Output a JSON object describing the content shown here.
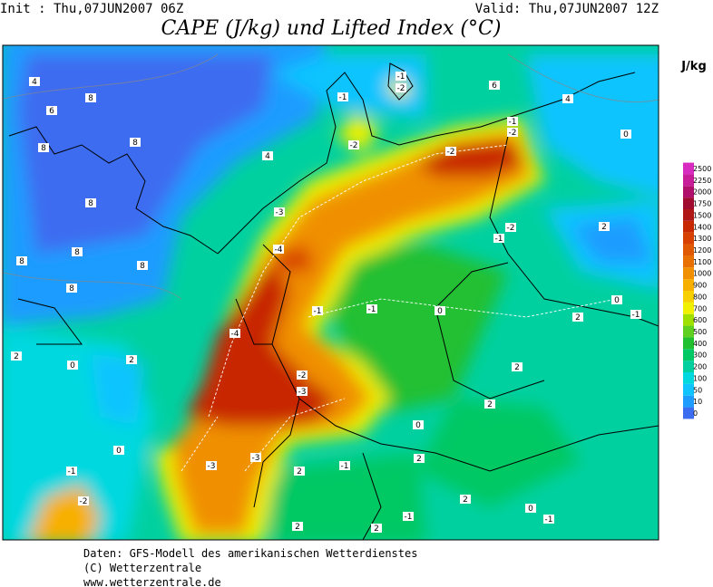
{
  "header": {
    "init": "Init : Thu,07JUN2007 06Z",
    "valid": "Valid: Thu,07JUN2007 12Z",
    "title": "CAPE (J/kg) und Lifted Index (°C)"
  },
  "colorbar": {
    "unit": "J/kg",
    "levels": [
      0,
      10,
      50,
      100,
      200,
      300,
      400,
      500,
      600,
      700,
      800,
      900,
      1000,
      1100,
      1200,
      1300,
      1400,
      1500,
      1750,
      2000,
      2250,
      2500
    ],
    "colors": [
      "#3c6cf0",
      "#1e9cff",
      "#10c4ff",
      "#00d8e0",
      "#00d0a0",
      "#00c864",
      "#20c030",
      "#60d020",
      "#a0e000",
      "#f0f000",
      "#f8d000",
      "#f8b000",
      "#f09000",
      "#e87000",
      "#e05800",
      "#d84000",
      "#c82800",
      "#b01818",
      "#a00c30",
      "#b0106c",
      "#c81c98",
      "#d82cc0"
    ]
  },
  "contour_labels": [
    "4",
    "6",
    "8",
    "8",
    "8",
    "8",
    "8",
    "8",
    "8",
    "8",
    "2",
    "0",
    "2",
    "0",
    "-1",
    "-2",
    "4",
    "-1",
    "-2",
    "-1",
    "-2",
    "6",
    "4",
    "-1",
    "-2",
    "-2",
    "0",
    "-3",
    "-4",
    "-1",
    "-1",
    "0",
    "-2",
    "-1",
    "2",
    "0",
    "-1",
    "2",
    "-4",
    "-2",
    "-3",
    "-3",
    "-3",
    "2",
    "-1",
    "2",
    "2",
    "0",
    "2",
    "-1",
    "-1",
    "0",
    "2",
    "2",
    "2"
  ],
  "footer": [
    "Daten: GFS-Modell des amerikanischen Wetterdienstes",
    "(C) Wetterzentrale",
    "www.wetterzentrale.de"
  ]
}
